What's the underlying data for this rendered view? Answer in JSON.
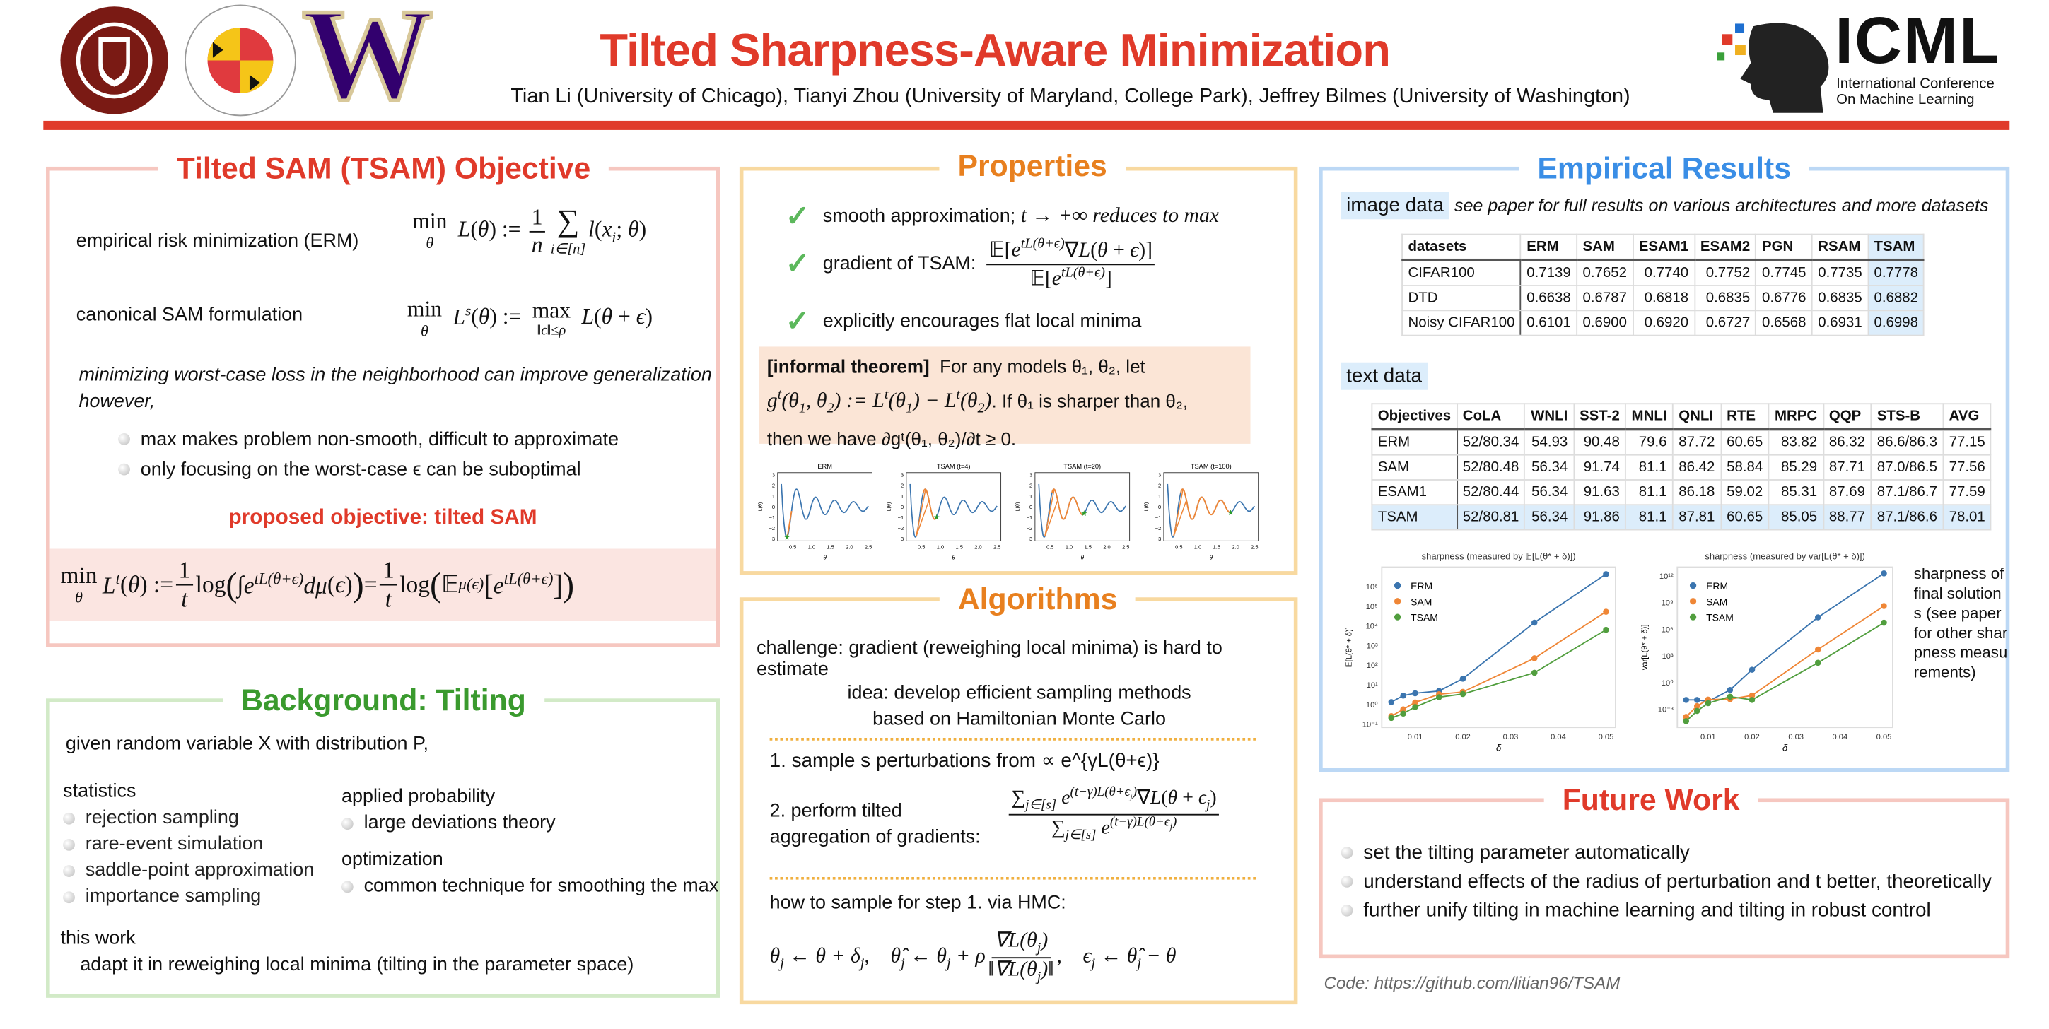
{
  "header": {
    "title": "Tilted Sharpness-Aware Minimization",
    "authors": "Tian Li (University of Chicago), Tianyi Zhou (University of Maryland, College Park), Jeffrey Bilmes (University of Washington)",
    "logos": {
      "uchicago": "THE UNIVERSITY OF CHICAGO 1890",
      "umd": "UNIVERSITY OF MARYLAND 18 56",
      "uw": "W",
      "icml": "ICML",
      "icml_sub1": "International Conference",
      "icml_sub2": "On Machine Learning"
    },
    "colors": {
      "accent": "#e03a2a",
      "uchicago": "#7a1a14",
      "uw": "#32006e"
    }
  },
  "objective": {
    "title": "Tilted SAM (TSAM) Objective",
    "erm_label": "empirical risk minimization (ERM)",
    "sam_label": "canonical SAM formulation",
    "note": "minimizing worst-case loss in the neighborhood can improve generalization however,",
    "bullets": [
      "max makes problem non-smooth, difficult to approximate",
      "only focusing on the worst-case ϵ can be suboptimal"
    ],
    "proposed": "proposed objective: tilted SAM"
  },
  "background": {
    "title": "Background: Tilting",
    "intro": "given random variable X with distribution P,",
    "statistics": {
      "heading": "statistics",
      "items": [
        "rejection sampling",
        "rare-event simulation",
        "saddle-point approximation",
        "importance sampling"
      ]
    },
    "applied": {
      "heading": "applied probability",
      "items": [
        "large deviations theory"
      ]
    },
    "optimization": {
      "heading": "optimization",
      "items": [
        "common technique for smoothing the max"
      ]
    },
    "this_work": {
      "heading": "this work",
      "text": "adapt it in reweighing local minima (tilting in the parameter space)"
    }
  },
  "properties": {
    "title": "Properties",
    "items": [
      "smooth approximation;",
      "gradient of TSAM:",
      "explicitly encourages flat local minima"
    ],
    "item1_math": "t → +∞ reduces to max",
    "theorem_label": "[informal theorem]",
    "theorem_a": "For any models θ₁, θ₂, let",
    "theorem_b": ". If θ₁ is sharper than θ₂,",
    "theorem_c": "then we have ∂gᵗ(θ₁, θ₂)/∂t ≥ 0.",
    "plot_titles": [
      "ERM",
      "TSAM (t=4)",
      "TSAM (t=20)",
      "TSAM (t=100)"
    ],
    "plot_xticks": [
      "0.5",
      "1.0",
      "1.5",
      "2.0",
      "2.5"
    ],
    "plot_yticks": [
      "3",
      "2",
      "1",
      "0",
      "−1",
      "−2",
      "−3"
    ],
    "plot_xlabel": "θ",
    "plot_ylabel": "L(θ)",
    "plot_solution_theta": [
      0.35,
      0.9,
      1.4,
      1.87
    ]
  },
  "algorithms": {
    "title": "Algorithms",
    "challenge": "challenge: gradient (reweighing local minima) is hard to estimate",
    "idea": "idea: develop efficient sampling methods based on Hamiltonian Monte Carlo",
    "step1": "1. sample s perturbations from ∝ e^{γL(θ+ϵ)}",
    "step2": "2. perform tilted aggregation of gradients:",
    "hmc": "how to sample for step 1. via HMC:"
  },
  "results": {
    "title": "Empirical Results",
    "image_tag": "image data",
    "image_note": "see paper for full results on various architectures and more datasets",
    "image_table": {
      "headers": [
        "datasets",
        "ERM",
        "SAM",
        "ESAM1",
        "ESAM2",
        "PGN",
        "RSAM",
        "TSAM"
      ],
      "rows": [
        [
          "CIFAR100",
          "0.7139",
          "0.7652",
          "0.7740",
          "0.7752",
          "0.7745",
          "0.7735",
          "0.7778"
        ],
        [
          "DTD",
          "0.6638",
          "0.6787",
          "0.6818",
          "0.6835",
          "0.6776",
          "0.6835",
          "0.6882"
        ],
        [
          "Noisy CIFAR100",
          "0.6101",
          "0.6900",
          "0.6920",
          "0.6727",
          "0.6568",
          "0.6931",
          "0.6998"
        ]
      ]
    },
    "text_tag": "text data",
    "text_table": {
      "headers": [
        "Objectives",
        "CoLA",
        "WNLI",
        "SST-2",
        "MNLI",
        "QNLI",
        "RTE",
        "MRPC",
        "QQP",
        "STS-B",
        "AVG"
      ],
      "rows": [
        [
          "ERM",
          "52/80.34",
          "54.93",
          "90.48",
          "79.6",
          "87.72",
          "60.65",
          "83.82",
          "86.32",
          "86.6/86.3",
          "77.15"
        ],
        [
          "SAM",
          "52/80.48",
          "56.34",
          "91.74",
          "81.1",
          "86.42",
          "58.84",
          "85.29",
          "87.71",
          "87.0/86.5",
          "77.56"
        ],
        [
          "ESAM1",
          "52/80.44",
          "56.34",
          "91.63",
          "81.1",
          "86.18",
          "59.02",
          "85.31",
          "87.69",
          "87.1/86.7",
          "77.59"
        ],
        [
          "TSAM",
          "52/80.81",
          "56.34",
          "91.86",
          "81.1",
          "87.81",
          "60.65",
          "85.05",
          "88.77",
          "87.1/86.6",
          "78.01"
        ]
      ]
    },
    "side_note": "sharpness of final solutions (see paper for other sharpness measurements)"
  },
  "chart_data": [
    {
      "type": "line",
      "title": "sharpness (measured by 𝔼[L(θ* + δ)])",
      "xlabel": "δ",
      "ylabel": "𝔼[L(θ* + δ)]",
      "yscale": "log",
      "ylim": [
        0.07,
        10000000.0
      ],
      "x": [
        0.005,
        0.0075,
        0.01,
        0.015,
        0.02,
        0.035,
        0.05
      ],
      "xticks": [
        "0.01",
        "0.02",
        "0.03",
        "0.04",
        "0.05"
      ],
      "yticks": [
        "10⁻¹",
        "10⁰",
        "10¹",
        "10²",
        "10³",
        "10⁴",
        "10⁵",
        "10⁶"
      ],
      "legend": "top-left",
      "series": [
        {
          "name": "ERM",
          "color": "#3b75af",
          "values": [
            1.35,
            2.9,
            3.8,
            5,
            21,
            15000,
            4400000
          ]
        },
        {
          "name": "SAM",
          "color": "#ef8636",
          "values": [
            0.26,
            0.58,
            1.3,
            3.4,
            4.5,
            230,
            54000
          ]
        },
        {
          "name": "TSAM",
          "color": "#519e3e",
          "values": [
            0.21,
            0.35,
            0.76,
            2.4,
            3.5,
            42,
            6500
          ]
        }
      ]
    },
    {
      "type": "line",
      "title": "sharpness (measured by var[L(θ* + δ)])",
      "xlabel": "δ",
      "ylabel": "var[L(θ* + δ)]",
      "yscale": "log",
      "ylim": [
        1e-05,
        10000000000000.0
      ],
      "x": [
        0.005,
        0.0075,
        0.01,
        0.015,
        0.02,
        0.035,
        0.05
      ],
      "xticks": [
        "0.01",
        "0.02",
        "0.03",
        "0.04",
        "0.05"
      ],
      "yticks": [
        "10⁻³",
        "10⁰",
        "10³",
        "10⁶",
        "10⁹",
        "10¹²"
      ],
      "legend": "top-left",
      "series": [
        {
          "name": "ERM",
          "color": "#3b75af",
          "values": [
            0.012,
            0.012,
            0.008,
            0.16,
            30,
            23000000,
            2000000000000
          ]
        },
        {
          "name": "SAM",
          "color": "#ef8636",
          "values": [
            0.00015,
            0.0025,
            0.013,
            0.015,
            0.038,
            5600,
            430000000
          ]
        },
        {
          "name": "TSAM",
          "color": "#519e3e",
          "values": [
            5e-05,
            0.0007,
            0.0052,
            0.028,
            0.012,
            180,
            5800000
          ]
        }
      ]
    }
  ],
  "future": {
    "title": "Future Work",
    "items": [
      "set the tilting parameter automatically",
      "understand effects of the radius of perturbation and t better, theoretically",
      "further unify tilting in machine learning and tilting in robust control"
    ]
  },
  "code": {
    "label": "Code: ",
    "link": "https://github.com/litian96/TSAM"
  }
}
